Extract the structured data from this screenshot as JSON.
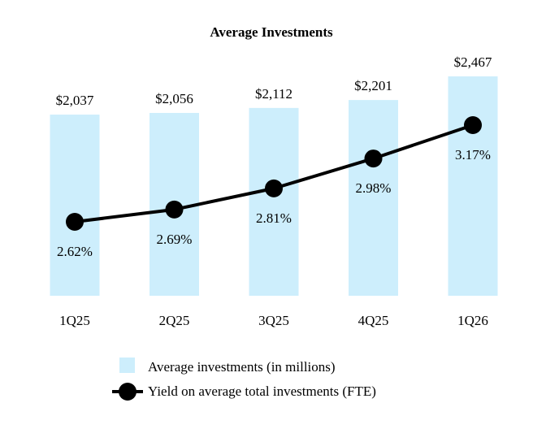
{
  "chart_data": {
    "type": "bar",
    "title": "Average Investments",
    "xlabel": "",
    "ylabel": "",
    "categories": [
      "1Q25",
      "2Q25",
      "3Q25",
      "4Q25",
      "1Q26"
    ],
    "grid": false,
    "legend_position": "bottom",
    "series": [
      {
        "name": "Average investments (in millions)",
        "type": "bar",
        "color": "#cdeefc",
        "values": [
          2037,
          2056,
          2112,
          2201,
          2467
        ],
        "labels": [
          "$2,037",
          "$2,056",
          "$2,112",
          "$2,201",
          "$2,467"
        ]
      },
      {
        "name": "Yield on average total investments (FTE)",
        "type": "line",
        "color": "#000000",
        "values": [
          2.62,
          2.69,
          2.81,
          2.98,
          3.17
        ],
        "labels": [
          "2.62%",
          "2.69%",
          "2.81%",
          "2.98%",
          "3.17%"
        ]
      }
    ]
  }
}
